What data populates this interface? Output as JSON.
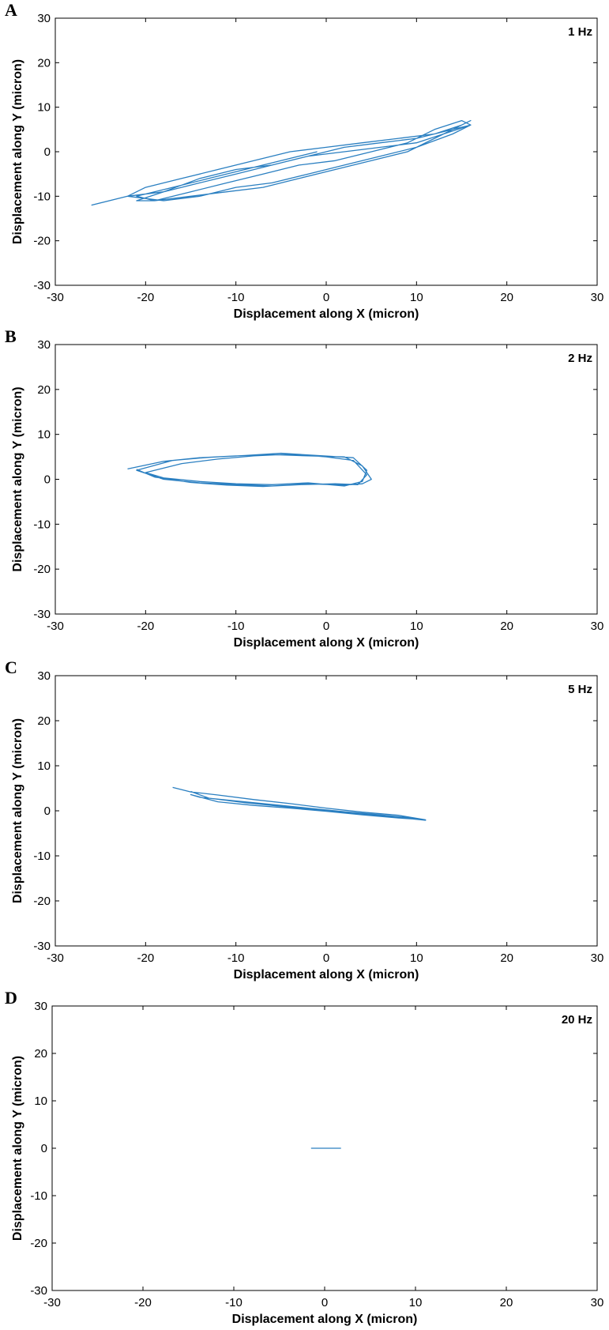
{
  "chart_data": [
    {
      "panel": "A",
      "type": "line",
      "annotation": "1 Hz",
      "xlabel": "Displacement along X (micron)",
      "ylabel": "Displacement along Y (micron)",
      "xlim": [
        -30,
        30
      ],
      "ylim": [
        -30,
        30
      ],
      "xticks": [
        -30,
        -20,
        -10,
        0,
        10,
        20,
        30
      ],
      "yticks": [
        -30,
        -20,
        -10,
        0,
        10,
        20,
        30
      ],
      "grid": false,
      "series": [
        {
          "x": [
            -26,
            -22,
            -18,
            -14,
            -10,
            -6,
            -2,
            2,
            6,
            10,
            13,
            16,
            15,
            12,
            9,
            5,
            1,
            -3,
            -7,
            -11,
            -15,
            -19,
            -21,
            -18,
            -14,
            -10,
            -6,
            -2,
            2,
            6,
            10,
            14,
            16,
            14,
            10,
            6,
            2,
            -2,
            -6,
            -10,
            -14,
            -18,
            -22,
            -20,
            -16,
            -12,
            -8,
            -4,
            0,
            4,
            8,
            12,
            15,
            16,
            13,
            9,
            5,
            1,
            -3,
            -7,
            -11,
            -15,
            -19,
            -21,
            -17,
            -13,
            -9,
            -5,
            -1
          ],
          "y": [
            -12,
            -10,
            -9,
            -6,
            -4,
            -3,
            -1,
            0,
            1,
            2,
            4,
            6,
            7,
            5,
            2,
            0,
            -2,
            -3,
            -5,
            -7,
            -9,
            -11,
            -11,
            -9,
            -7,
            -5,
            -3,
            -1,
            1,
            2,
            3,
            5,
            6,
            4,
            1,
            -1,
            -3,
            -5,
            -7,
            -8,
            -10,
            -11,
            -10,
            -8,
            -6,
            -4,
            -2,
            0,
            1,
            2,
            3,
            4,
            6,
            7,
            4,
            0,
            -2,
            -4,
            -6,
            -8,
            -9,
            -10,
            -11,
            -10,
            -8,
            -6,
            -4,
            -2,
            0
          ],
          "color": "#2a7fc1"
        }
      ]
    },
    {
      "panel": "B",
      "type": "line",
      "annotation": "2 Hz",
      "xlabel": "Displacement along X (micron)",
      "ylabel": "Displacement along Y (micron)",
      "xlim": [
        -30,
        30
      ],
      "ylim": [
        -30,
        30
      ],
      "xticks": [
        -30,
        -20,
        -10,
        0,
        10,
        20,
        30
      ],
      "yticks": [
        -30,
        -20,
        -10,
        0,
        10,
        20,
        30
      ],
      "grid": false,
      "series": [
        {
          "x": [
            -22,
            -18,
            -14,
            -10,
            -6,
            -2,
            2,
            4,
            5,
            4,
            2,
            -2,
            -6,
            -10,
            -14,
            -18,
            -21,
            -17,
            -13,
            -9,
            -5,
            -1,
            3,
            4.5,
            4,
            2,
            -2,
            -6,
            -10,
            -14,
            -18,
            -20,
            -16,
            -12,
            -8,
            -4,
            0,
            3,
            4.5,
            3.5,
            1,
            -3,
            -7,
            -11,
            -15,
            -19,
            -21
          ],
          "y": [
            2.3,
            4,
            4.8,
            5.2,
            5.5,
            5.2,
            5,
            3,
            0,
            -1,
            -1.3,
            -1,
            -1.5,
            -1.2,
            -0.8,
            0,
            2,
            4.2,
            4.9,
            5.3,
            5.8,
            5.3,
            4.8,
            2,
            -0.5,
            -1.5,
            -0.8,
            -1.2,
            -1,
            -0.5,
            0.3,
            1.5,
            3.5,
            4.5,
            5.2,
            5.6,
            5,
            4.2,
            1,
            -1.2,
            -1,
            -1.2,
            -1.6,
            -1.3,
            -0.7,
            0.5,
            2.2
          ],
          "color": "#2a7fc1"
        }
      ]
    },
    {
      "panel": "C",
      "type": "line",
      "annotation": "5 Hz",
      "xlabel": "Displacement along X (micron)",
      "ylabel": "Displacement along Y (micron)",
      "xlim": [
        -30,
        30
      ],
      "ylim": [
        -30,
        30
      ],
      "xticks": [
        -30,
        -20,
        -10,
        0,
        10,
        20,
        30
      ],
      "yticks": [
        -30,
        -20,
        -10,
        0,
        10,
        20,
        30
      ],
      "grid": false,
      "series": [
        {
          "x": [
            -17,
            -15,
            -12,
            -8,
            -4,
            0,
            4,
            8,
            11,
            8,
            4,
            0,
            -4,
            -8,
            -12,
            -15,
            -14,
            -10,
            -6,
            -2,
            2,
            6,
            10,
            11,
            7,
            3,
            -1,
            -5,
            -9,
            -13,
            -15
          ],
          "y": [
            5.2,
            4.2,
            3.5,
            2.5,
            1.6,
            0.6,
            -0.3,
            -1,
            -2,
            -1.6,
            -0.9,
            -0.1,
            0.6,
            1.2,
            2,
            3.6,
            3,
            2.2,
            1.4,
            0.6,
            -0.2,
            -0.9,
            -1.7,
            -2.1,
            -1.3,
            -0.5,
            0.3,
            1,
            1.8,
            2.8,
            4.3
          ],
          "color": "#2a7fc1"
        }
      ]
    },
    {
      "panel": "D",
      "type": "line",
      "annotation": "20 Hz",
      "xlabel": "Displacement along X (micron)",
      "ylabel": "Displacement along Y (micron)",
      "xlim": [
        -30,
        30
      ],
      "ylim": [
        -30,
        30
      ],
      "xticks": [
        -30,
        -20,
        -10,
        0,
        10,
        20,
        30
      ],
      "yticks": [
        -30,
        -20,
        -10,
        0,
        10,
        20,
        30
      ],
      "grid": false,
      "series": [
        {
          "x": [
            -1.5,
            1.8
          ],
          "y": [
            0,
            0
          ],
          "color": "#2a7fc1"
        }
      ]
    }
  ]
}
